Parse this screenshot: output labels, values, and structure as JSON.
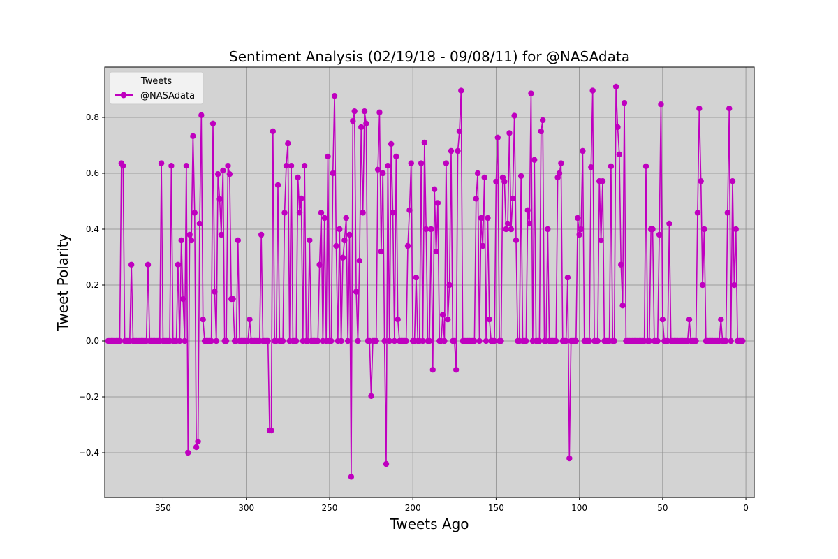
{
  "chart_data": {
    "type": "line",
    "title": "Sentiment Analysis (02/19/18 - 09/08/11) for @NASAdata",
    "xlabel": "Tweets Ago",
    "ylabel": "Tweet Polarity",
    "xlim": [
      385,
      -5
    ],
    "ylim": [
      -0.56,
      0.98
    ],
    "x_ticks": [
      350,
      300,
      250,
      200,
      150,
      100,
      50,
      0
    ],
    "y_ticks": [
      -0.4,
      -0.2,
      0.0,
      0.2,
      0.4,
      0.6,
      0.8
    ],
    "x_tick_labels": [
      "350",
      "300",
      "250",
      "200",
      "150",
      "100",
      "50",
      "0"
    ],
    "y_tick_labels": [
      "−0.4",
      "−0.2",
      "0.0",
      "0.2",
      "0.4",
      "0.6",
      "0.8"
    ],
    "grid": true,
    "background": "#d3d3d3",
    "legend": {
      "title": "Tweets",
      "placement": "top-left"
    },
    "series": [
      {
        "name": "@NASAdata",
        "color": "#bf00bf",
        "marker": "circle",
        "x_start": 383,
        "x_step": -1,
        "values": [
          0,
          0,
          0,
          0,
          0,
          0,
          0,
          0,
          0.636,
          0.627,
          0,
          0,
          0,
          0,
          0.273,
          0,
          0,
          0,
          0,
          0,
          0,
          0,
          0,
          0,
          0.273,
          0,
          0,
          0,
          0,
          0,
          0,
          0,
          0.636,
          0,
          0,
          0,
          0,
          0,
          0.627,
          0,
          0,
          0,
          0.273,
          0,
          0.36,
          0.15,
          0,
          0.627,
          -0.4,
          0.38,
          0.36,
          0.733,
          0.459,
          -0.38,
          -0.36,
          0.42,
          0.808,
          0.077,
          0,
          0,
          0,
          0,
          0,
          0.778,
          0.176,
          0,
          0.597,
          0.508,
          0.38,
          0.61,
          0,
          0,
          0.627,
          0.597,
          0.15,
          0.15,
          0,
          0,
          0.36,
          0,
          0,
          0,
          0,
          0,
          0,
          0.077,
          0,
          0,
          0,
          0,
          0,
          0,
          0.38,
          0,
          0,
          0,
          0,
          -0.32,
          -0.32,
          0.75,
          0,
          0,
          0.558,
          0,
          0,
          0,
          0.459,
          0.627,
          0.707,
          0,
          0.627,
          0,
          0,
          0,
          0.585,
          0.459,
          0.51,
          0,
          0.627,
          0,
          0,
          0.36,
          0,
          0,
          0,
          0,
          0,
          0.273,
          0.459,
          0,
          0.44,
          0,
          0.66,
          0,
          0,
          0.6,
          0.877,
          0.34,
          0,
          0.4,
          0,
          0.298,
          0.36,
          0.44,
          0,
          0.38,
          -0.486,
          0.787,
          0.822,
          0.176,
          0,
          0.287,
          0.765,
          0.459,
          0.822,
          0.778,
          0,
          0,
          -0.197,
          0,
          0,
          0,
          0.613,
          0.818,
          0.32,
          0.6,
          0,
          -0.44,
          0.627,
          0,
          0.705,
          0.459,
          0,
          0.66,
          0.077,
          0,
          0,
          0,
          0,
          0,
          0.34,
          0.468,
          0.636,
          0,
          0,
          0.227,
          0,
          0,
          0.636,
          0,
          0.71,
          0.4,
          0,
          0,
          0.4,
          -0.103,
          0.543,
          0.32,
          0.494,
          0,
          0,
          0.094,
          0,
          0.636,
          0.077,
          0.2,
          0.68,
          0,
          0,
          -0.103,
          0.68,
          0.75,
          0.896,
          0,
          0,
          0,
          0,
          0,
          0,
          0,
          0,
          0.509,
          0.6,
          0,
          0.44,
          0.34,
          0.585,
          0,
          0.44,
          0.077,
          0,
          0,
          0,
          0.57,
          0.728,
          0,
          0,
          0.585,
          0.57,
          0.4,
          0.42,
          0.744,
          0.4,
          0.51,
          0.806,
          0.36,
          0,
          0,
          0.59,
          0,
          0,
          0,
          0.468,
          0.42,
          0.886,
          0,
          0.648,
          0,
          0,
          0,
          0.75,
          0.79,
          0,
          0,
          0.4,
          0,
          0,
          0,
          0,
          0,
          0.585,
          0.6,
          0.636,
          0,
          0,
          0,
          0.227,
          -0.42,
          0,
          0,
          0,
          0,
          0.44,
          0.38,
          0.4,
          0.68,
          0,
          0,
          0,
          0,
          0.622,
          0.896,
          0,
          0,
          0,
          0.572,
          0.36,
          0.572,
          0,
          0,
          0,
          0,
          0.625,
          0,
          0,
          0.91,
          0.765,
          0.668,
          0.273,
          0.127,
          0.852,
          0,
          0,
          0,
          0,
          0,
          0,
          0,
          0,
          0,
          0,
          0,
          0,
          0.625,
          0,
          0,
          0.4,
          0.4,
          0,
          0,
          0,
          0.38,
          0.847,
          0.077,
          0,
          0,
          0,
          0.42,
          0,
          0,
          0,
          0,
          0,
          0,
          0,
          0,
          0,
          0,
          0,
          0.077,
          0,
          0,
          0,
          0,
          0.459,
          0.832,
          0.572,
          0.2,
          0.4,
          0,
          0,
          0,
          0,
          0,
          0,
          0,
          0,
          0,
          0.077,
          0,
          0,
          0,
          0.459,
          0.832,
          0,
          0.572,
          0.2,
          0.4,
          0,
          0,
          0,
          0
        ]
      }
    ]
  }
}
